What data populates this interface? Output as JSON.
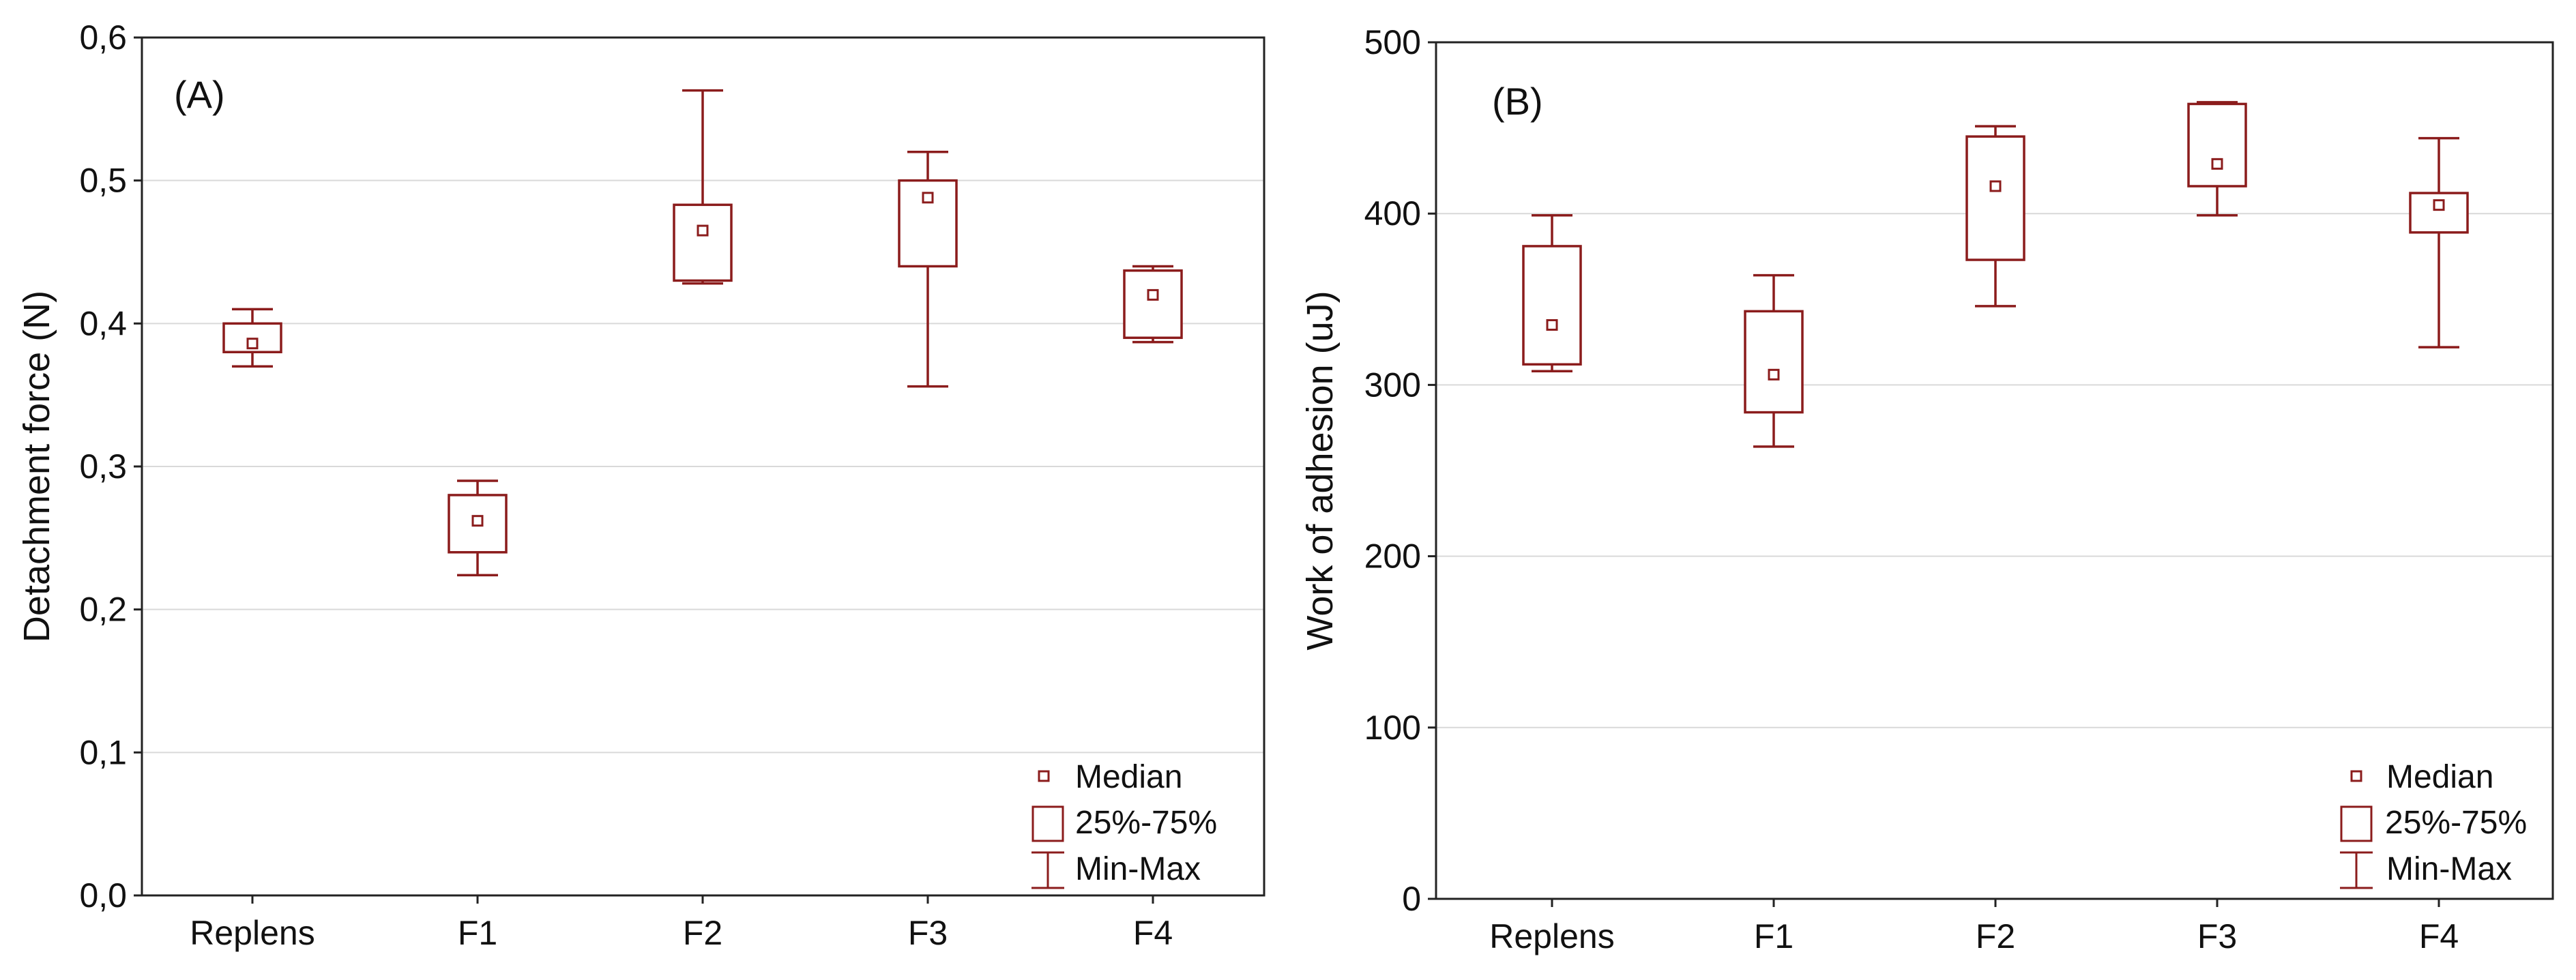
{
  "colors": {
    "box": "#8b1c1c",
    "grid": "#d9d9d9",
    "axis": "#222222",
    "background": "#ffffff"
  },
  "chart_data": [
    {
      "type": "box",
      "panel_label": "(A)",
      "title": "",
      "xlabel": "",
      "ylabel": "Detachment force (N)",
      "categories": [
        "Replens",
        "F1",
        "F2",
        "F3",
        "F4"
      ],
      "ylim": [
        0,
        0.6
      ],
      "yticks": [
        "0,0",
        "0,1",
        "0,2",
        "0,3",
        "0,4",
        "0,5",
        "0,6"
      ],
      "grid": true,
      "boxes": [
        {
          "category": "Replens",
          "min": 0.37,
          "q1": 0.38,
          "median": 0.386,
          "q3": 0.4,
          "max": 0.41
        },
        {
          "category": "F1",
          "min": 0.224,
          "q1": 0.24,
          "median": 0.262,
          "q3": 0.28,
          "max": 0.29
        },
        {
          "category": "F2",
          "min": 0.428,
          "q1": 0.43,
          "median": 0.465,
          "q3": 0.483,
          "max": 0.563
        },
        {
          "category": "F3",
          "min": 0.356,
          "q1": 0.44,
          "median": 0.488,
          "q3": 0.5,
          "max": 0.52
        },
        {
          "category": "F4",
          "min": 0.387,
          "q1": 0.39,
          "median": 0.42,
          "q3": 0.437,
          "max": 0.44
        }
      ],
      "legend": {
        "position": "bottom-right",
        "entries": [
          "Median",
          "25%-75%",
          "Min-Max"
        ]
      }
    },
    {
      "type": "box",
      "panel_label": "(B)",
      "title": "",
      "xlabel": "",
      "ylabel": "Work of adhesion (uJ)",
      "categories": [
        "Replens",
        "F1",
        "F2",
        "F3",
        "F4"
      ],
      "ylim": [
        0,
        500
      ],
      "yticks": [
        "0",
        "100",
        "200",
        "300",
        "400",
        "500"
      ],
      "grid": true,
      "boxes": [
        {
          "category": "Replens",
          "min": 308,
          "q1": 312,
          "median": 335,
          "q3": 381,
          "max": 399
        },
        {
          "category": "F1",
          "min": 264,
          "q1": 284,
          "median": 306,
          "q3": 343,
          "max": 364
        },
        {
          "category": "F2",
          "min": 346,
          "q1": 373,
          "median": 416,
          "q3": 445,
          "max": 451
        },
        {
          "category": "F3",
          "min": 399,
          "q1": 416,
          "median": 429,
          "q3": 464,
          "max": 465
        },
        {
          "category": "F4",
          "min": 322,
          "q1": 389,
          "median": 405,
          "q3": 412,
          "max": 444
        }
      ],
      "legend": {
        "position": "bottom-right",
        "entries": [
          "Median",
          "25%-75%",
          "Min-Max"
        ]
      }
    }
  ]
}
